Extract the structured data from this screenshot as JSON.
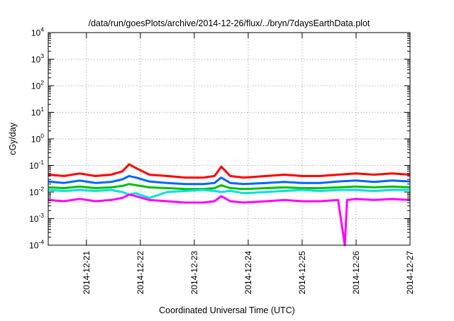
{
  "chart_data": {
    "type": "line",
    "title": "/data/run/goesPlots/archive/2014-12-26/flux/../bryn/7daysEarthData.plot",
    "xlabel": "Coordinated Universal Time (UTC)",
    "ylabel": "cGy/day",
    "y_scale": "log",
    "ylim": [
      0.0001,
      10000
    ],
    "xlim": [
      "2014-12-20 07:00",
      "2014-12-27 00:00"
    ],
    "x_ticks": [
      "2014-12-21",
      "2014-12-22",
      "2014-12-23",
      "2014-12-24",
      "2014-12-25",
      "2014-12-26",
      "2014-12-27"
    ],
    "y_ticks": [
      {
        "base": "10",
        "exp": "-4",
        "value": 0.0001
      },
      {
        "base": "10",
        "exp": "-3",
        "value": 0.001
      },
      {
        "base": "10",
        "exp": "-2",
        "value": 0.01
      },
      {
        "base": "10",
        "exp": "-1",
        "value": 0.1
      },
      {
        "base": "10",
        "exp": "0",
        "value": 1
      },
      {
        "base": "10",
        "exp": "1",
        "value": 10
      },
      {
        "base": "10",
        "exp": "2",
        "value": 100
      },
      {
        "base": "10",
        "exp": "3",
        "value": 1000
      },
      {
        "base": "10",
        "exp": "4",
        "value": 10000
      }
    ],
    "grid": true,
    "legend": "none",
    "series": [
      {
        "color": "#ff0000",
        "x": [
          "2014-12-20 07:00",
          "2014-12-20 14:00",
          "2014-12-20 21:00",
          "2014-12-21 04:00",
          "2014-12-21 11:00",
          "2014-12-21 16:00",
          "2014-12-21 19:00",
          "2014-12-21 22:00",
          "2014-12-22 04:00",
          "2014-12-22 12:00",
          "2014-12-22 20:00",
          "2014-12-23 04:00",
          "2014-12-23 09:00",
          "2014-12-23 12:00",
          "2014-12-23 16:00",
          "2014-12-23 22:00",
          "2014-12-24 08:00",
          "2014-12-24 16:00",
          "2014-12-25 00:00",
          "2014-12-25 08:00",
          "2014-12-25 16:00",
          "2014-12-26 00:00",
          "2014-12-26 08:00",
          "2014-12-26 16:00",
          "2014-12-27 00:00"
        ],
        "y": [
          0.045,
          0.04,
          0.05,
          0.04,
          0.045,
          0.06,
          0.11,
          0.08,
          0.045,
          0.04,
          0.035,
          0.035,
          0.04,
          0.09,
          0.04,
          0.035,
          0.04,
          0.045,
          0.04,
          0.04,
          0.045,
          0.05,
          0.045,
          0.05,
          0.045
        ]
      },
      {
        "color": "#00c000",
        "x": [
          "2014-12-20 07:00",
          "2014-12-20 14:00",
          "2014-12-20 21:00",
          "2014-12-21 04:00",
          "2014-12-21 11:00",
          "2014-12-21 16:00",
          "2014-12-21 19:00",
          "2014-12-21 22:00",
          "2014-12-22 04:00",
          "2014-12-22 12:00",
          "2014-12-22 20:00",
          "2014-12-23 04:00",
          "2014-12-23 09:00",
          "2014-12-23 12:00",
          "2014-12-23 16:00",
          "2014-12-23 22:00",
          "2014-12-24 08:00",
          "2014-12-24 16:00",
          "2014-12-25 00:00",
          "2014-12-25 08:00",
          "2014-12-25 16:00",
          "2014-12-26 00:00",
          "2014-12-26 08:00",
          "2014-12-26 16:00",
          "2014-12-27 00:00"
        ],
        "y": [
          0.015,
          0.014,
          0.016,
          0.014,
          0.015,
          0.017,
          0.02,
          0.018,
          0.015,
          0.014,
          0.013,
          0.013,
          0.014,
          0.018,
          0.014,
          0.013,
          0.014,
          0.015,
          0.014,
          0.014,
          0.015,
          0.016,
          0.015,
          0.016,
          0.015
        ]
      },
      {
        "color": "#00e0e0",
        "x": [
          "2014-12-20 07:00",
          "2014-12-20 14:00",
          "2014-12-20 21:00",
          "2014-12-21 04:00",
          "2014-12-21 11:00",
          "2014-12-21 16:00",
          "2014-12-21 19:00",
          "2014-12-21 22:00",
          "2014-12-22 04:00",
          "2014-12-22 12:00",
          "2014-12-22 20:00",
          "2014-12-23 04:00",
          "2014-12-23 09:00",
          "2014-12-23 12:00",
          "2014-12-23 16:00",
          "2014-12-23 22:00",
          "2014-12-24 08:00",
          "2014-12-24 16:00",
          "2014-12-25 00:00",
          "2014-12-25 08:00",
          "2014-12-25 16:00",
          "2014-12-26 00:00",
          "2014-12-26 08:00",
          "2014-12-26 16:00",
          "2014-12-27 00:00"
        ],
        "y": [
          0.012,
          0.011,
          0.012,
          0.011,
          0.012,
          0.01,
          0.008,
          0.009,
          0.006,
          0.01,
          0.011,
          0.012,
          0.011,
          0.01,
          0.011,
          0.009,
          0.01,
          0.011,
          0.012,
          0.011,
          0.012,
          0.012,
          0.011,
          0.012,
          0.012
        ]
      },
      {
        "color": "#0066ff",
        "x": [
          "2014-12-20 07:00",
          "2014-12-20 14:00",
          "2014-12-20 21:00",
          "2014-12-21 04:00",
          "2014-12-21 11:00",
          "2014-12-21 16:00",
          "2014-12-21 19:00",
          "2014-12-21 22:00",
          "2014-12-22 04:00",
          "2014-12-22 12:00",
          "2014-12-22 20:00",
          "2014-12-23 04:00",
          "2014-12-23 09:00",
          "2014-12-23 12:00",
          "2014-12-23 16:00",
          "2014-12-23 22:00",
          "2014-12-24 08:00",
          "2014-12-24 16:00",
          "2014-12-25 00:00",
          "2014-12-25 08:00",
          "2014-12-25 16:00",
          "2014-12-26 00:00",
          "2014-12-26 08:00",
          "2014-12-26 16:00",
          "2014-12-27 00:00"
        ],
        "y": [
          0.025,
          0.022,
          0.027,
          0.022,
          0.024,
          0.03,
          0.04,
          0.035,
          0.025,
          0.022,
          0.02,
          0.02,
          0.022,
          0.035,
          0.022,
          0.02,
          0.022,
          0.024,
          0.022,
          0.022,
          0.025,
          0.027,
          0.024,
          0.027,
          0.025
        ]
      },
      {
        "color": "#ff00ff",
        "x": [
          "2014-12-20 07:00",
          "2014-12-20 14:00",
          "2014-12-20 21:00",
          "2014-12-21 04:00",
          "2014-12-21 11:00",
          "2014-12-21 16:00",
          "2014-12-21 19:00",
          "2014-12-21 22:00",
          "2014-12-22 04:00",
          "2014-12-22 12:00",
          "2014-12-22 20:00",
          "2014-12-23 04:00",
          "2014-12-23 09:00",
          "2014-12-23 12:00",
          "2014-12-23 16:00",
          "2014-12-23 22:00",
          "2014-12-24 08:00",
          "2014-12-24 16:00",
          "2014-12-25 00:00",
          "2014-12-25 08:00",
          "2014-12-25 16:00",
          "2014-12-25 19:00",
          "2014-12-25 20:00",
          "2014-12-26 00:00",
          "2014-12-26 08:00",
          "2014-12-26 16:00",
          "2014-12-27 00:00"
        ],
        "y": [
          0.005,
          0.0045,
          0.0055,
          0.0045,
          0.005,
          0.006,
          0.008,
          0.007,
          0.005,
          0.0045,
          0.004,
          0.004,
          0.0045,
          0.007,
          0.0045,
          0.004,
          0.0045,
          0.005,
          0.0045,
          0.0045,
          0.005,
          0.0001,
          0.005,
          0.0055,
          0.005,
          0.0055,
          0.005
        ]
      }
    ]
  }
}
